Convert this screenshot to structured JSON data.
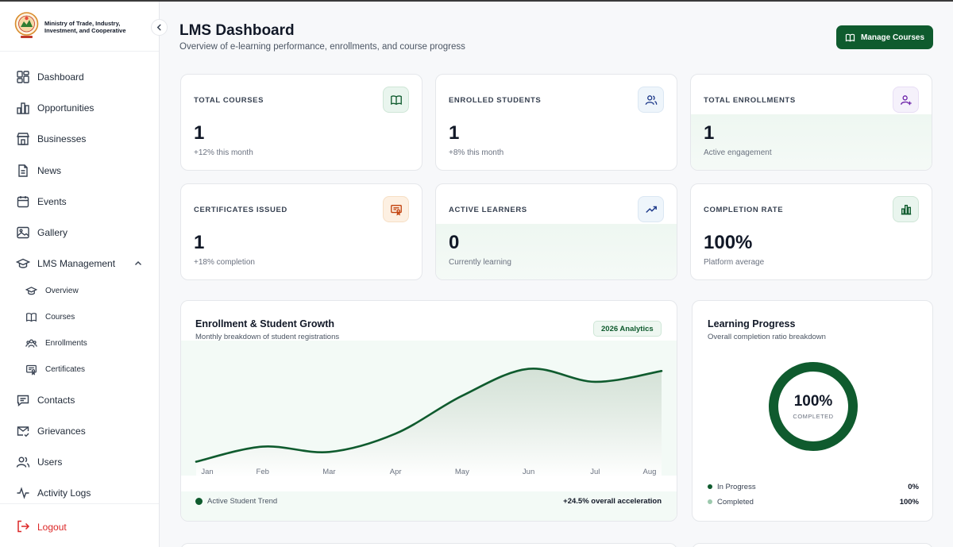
{
  "brand": {
    "name_line1": "Ministry of Trade, Industry,",
    "name_line2": "Investment, and Cooperative",
    "logo_icon": "ministry-emblem-icon"
  },
  "sidebar": {
    "items": [
      {
        "label": "Dashboard",
        "icon": "dashboard-icon"
      },
      {
        "label": "Opportunities",
        "icon": "chart-bars-icon"
      },
      {
        "label": "Businesses",
        "icon": "storefront-icon"
      },
      {
        "label": "News",
        "icon": "document-icon"
      },
      {
        "label": "Events",
        "icon": "calendar-icon"
      },
      {
        "label": "Gallery",
        "icon": "image-icon"
      },
      {
        "label": "LMS Management",
        "icon": "graduation-cap-icon"
      }
    ],
    "lms_subitems": [
      {
        "label": "Overview",
        "icon": "graduation-cap-icon"
      },
      {
        "label": "Courses",
        "icon": "book-icon"
      },
      {
        "label": "Enrollments",
        "icon": "users-icon"
      },
      {
        "label": "Certificates",
        "icon": "certificate-icon"
      }
    ],
    "items_after": [
      {
        "label": "Contacts",
        "icon": "chat-icon"
      },
      {
        "label": "Grievances",
        "icon": "mail-check-icon"
      },
      {
        "label": "Users",
        "icon": "users-icon"
      },
      {
        "label": "Activity Logs",
        "icon": "activity-icon"
      }
    ],
    "logout_label": "Logout"
  },
  "header": {
    "title": "LMS Dashboard",
    "subtitle": "Overview of e-learning performance, enrollments, and course progress",
    "manage_button": "Manage Courses"
  },
  "stats": [
    {
      "label": "TOTAL COURSES",
      "value": "1",
      "note": "+12% this month",
      "icon": "book-icon",
      "color": "#0f5b2e"
    },
    {
      "label": "ENROLLED STUDENTS",
      "value": "1",
      "note": "+8% this month",
      "icon": "users-icon",
      "color": "#1e3a8a"
    },
    {
      "label": "TOTAL ENROLLMENTS",
      "value": "1",
      "note": "Active engagement",
      "icon": "user-plus-icon",
      "color": "#6b21a8"
    },
    {
      "label": "CERTIFICATES ISSUED",
      "value": "1",
      "note": "+18% completion",
      "icon": "certificate-icon",
      "color": "#c2410c"
    },
    {
      "label": "ACTIVE LEARNERS",
      "value": "0",
      "note": "Currently learning",
      "icon": "trending-up-icon",
      "color": "#1e3a8a"
    },
    {
      "label": "COMPLETION RATE",
      "value": "100%",
      "note": "Platform average",
      "icon": "bar-chart-icon",
      "color": "#0f5b2e"
    }
  ],
  "enrollment_chart": {
    "title": "Enrollment & Student Growth",
    "subtitle": "Monthly breakdown of student registrations",
    "badge": "2026 Analytics",
    "legend": "Active Student Trend",
    "acceleration": "+24.5% overall acceleration",
    "line_color": "#0f5b2e"
  },
  "chart_data": {
    "type": "area",
    "categories": [
      "Jan",
      "Feb",
      "Mar",
      "Apr",
      "May",
      "Jun",
      "Jul",
      "Aug"
    ],
    "series": [
      {
        "name": "Active Student Trend",
        "values": [
          4,
          18,
          13,
          30,
          65,
          90,
          78,
          88
        ]
      }
    ],
    "ylim": [
      0,
      100
    ],
    "grid": false,
    "legend_position": "bottom-left"
  },
  "learning_progress": {
    "title": "Learning Progress",
    "subtitle": "Overall completion ratio breakdown",
    "center_value": "100%",
    "center_label": "COMPLETED",
    "completed_fraction": 1.0,
    "rows": [
      {
        "label": "In Progress",
        "value": "0%",
        "color": "#0f5b2e"
      },
      {
        "label": "Completed",
        "value": "100%",
        "color": "#9cc9ad"
      }
    ]
  }
}
